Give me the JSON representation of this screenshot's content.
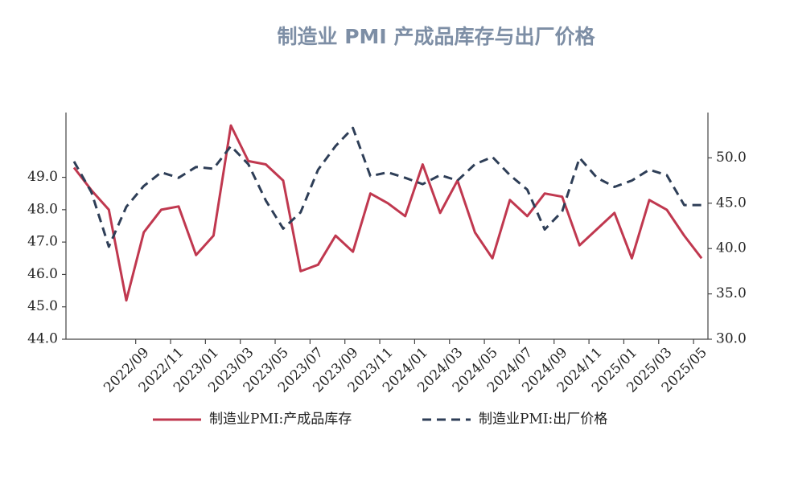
{
  "chart_data": {
    "type": "line",
    "title": "制造业 PMI 产成品库存与出厂价格",
    "categories": [
      null,
      null,
      null,
      null,
      "2022/09",
      null,
      "2022/11",
      null,
      "2023/01",
      null,
      "2023/03",
      null,
      "2023/05",
      null,
      "2023/07",
      null,
      "2023/09",
      null,
      "2023/11",
      null,
      "2024/01",
      null,
      "2024/03",
      null,
      "2024/05",
      null,
      "2024/07",
      null,
      "2024/09",
      null,
      "2024/11",
      null,
      "2025/01",
      null,
      "2025/03",
      null,
      "2025/05"
    ],
    "series": [
      {
        "name": "制造业PMI:产成品库存",
        "color": "#c0384f",
        "axis": "y",
        "values": [
          49.3,
          48.6,
          48.0,
          45.2,
          47.3,
          48.0,
          48.1,
          46.6,
          47.2,
          50.6,
          49.5,
          49.4,
          48.9,
          46.1,
          46.3,
          47.2,
          46.7,
          48.5,
          48.2,
          47.8,
          49.4,
          47.9,
          48.9,
          47.3,
          46.5,
          48.3,
          47.8,
          48.5,
          48.4,
          46.9,
          47.4,
          47.9,
          46.5,
          48.3,
          48.0,
          47.2,
          46.5
        ]
      },
      {
        "name": "制造业PMI:出厂价格",
        "color": "#2e3e57",
        "axis": "y2",
        "values": [
          49.6,
          46.2,
          40.2,
          44.6,
          46.9,
          48.4,
          47.8,
          49.0,
          48.8,
          51.3,
          49.3,
          45.3,
          42.2,
          44.0,
          48.7,
          51.3,
          53.3,
          48.0,
          48.4,
          47.8,
          47.1,
          48.1,
          47.5,
          49.3,
          50.1,
          48.1,
          46.5,
          42.1,
          44.1,
          50.0,
          47.8,
          46.8,
          47.5,
          48.7,
          48.1,
          44.8,
          44.8
        ]
      }
    ],
    "ylim": [
      44,
      51
    ],
    "yticks": [
      {
        "value": 44,
        "label": "44.0"
      },
      {
        "value": 45,
        "label": "45.0"
      },
      {
        "value": 46,
        "label": "46.0"
      },
      {
        "value": 47,
        "label": "47.0"
      },
      {
        "value": 48,
        "label": "48.0"
      },
      {
        "value": 49,
        "label": "49.0"
      }
    ],
    "y2lim": [
      30,
      55
    ],
    "y2ticks": [
      {
        "value": 30,
        "label": "30.0"
      },
      {
        "value": 35,
        "label": "35.0"
      },
      {
        "value": 40,
        "label": "40.0"
      },
      {
        "value": 45,
        "label": "45.0"
      },
      {
        "value": 50,
        "label": "50.0"
      }
    ],
    "legend": "bottom"
  }
}
